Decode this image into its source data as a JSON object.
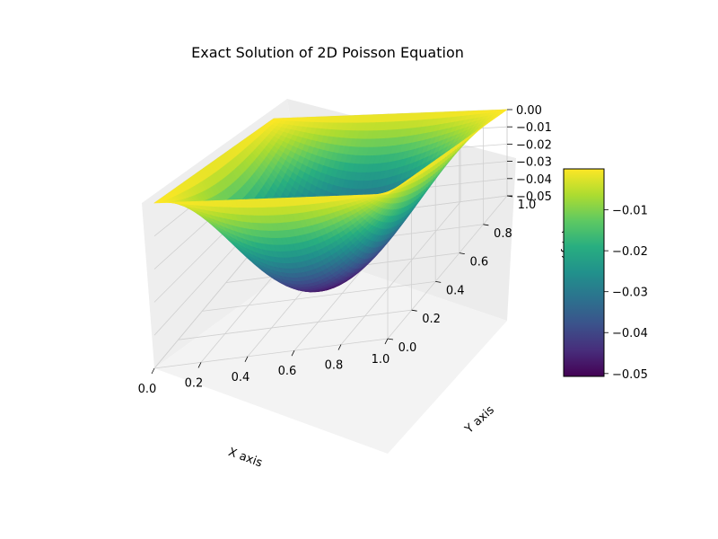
{
  "chart_data": {
    "type": "surface",
    "title": "Exact Solution of 2D Poisson Equation",
    "xlabel": "X axis",
    "ylabel": "Y axis",
    "zlabel": "u(x, y)",
    "function": "-(1/(2*pi^2)) * sin(pi*x) * sin(pi*y)",
    "x_range": [
      0,
      1
    ],
    "y_range": [
      0,
      1
    ],
    "z_range": [
      -0.05,
      0.0
    ],
    "grid_points": 50,
    "x_ticks": [
      "0.0",
      "0.2",
      "0.4",
      "0.6",
      "0.8",
      "1.0"
    ],
    "y_ticks": [
      "0.0",
      "0.2",
      "0.4",
      "0.6",
      "0.8",
      "1.0"
    ],
    "z_ticks": [
      "−0.05",
      "−0.04",
      "−0.03",
      "−0.02",
      "−0.01",
      "0.00"
    ],
    "colormap": "viridis",
    "colorbar": {
      "ticks": [
        "−0.05",
        "−0.04",
        "−0.03",
        "−0.02",
        "−0.01"
      ],
      "tick_values": [
        -0.05,
        -0.04,
        -0.03,
        -0.02,
        -0.01
      ],
      "range": [
        -0.0507,
        0.0
      ],
      "placement": "right"
    },
    "grid": true
  }
}
